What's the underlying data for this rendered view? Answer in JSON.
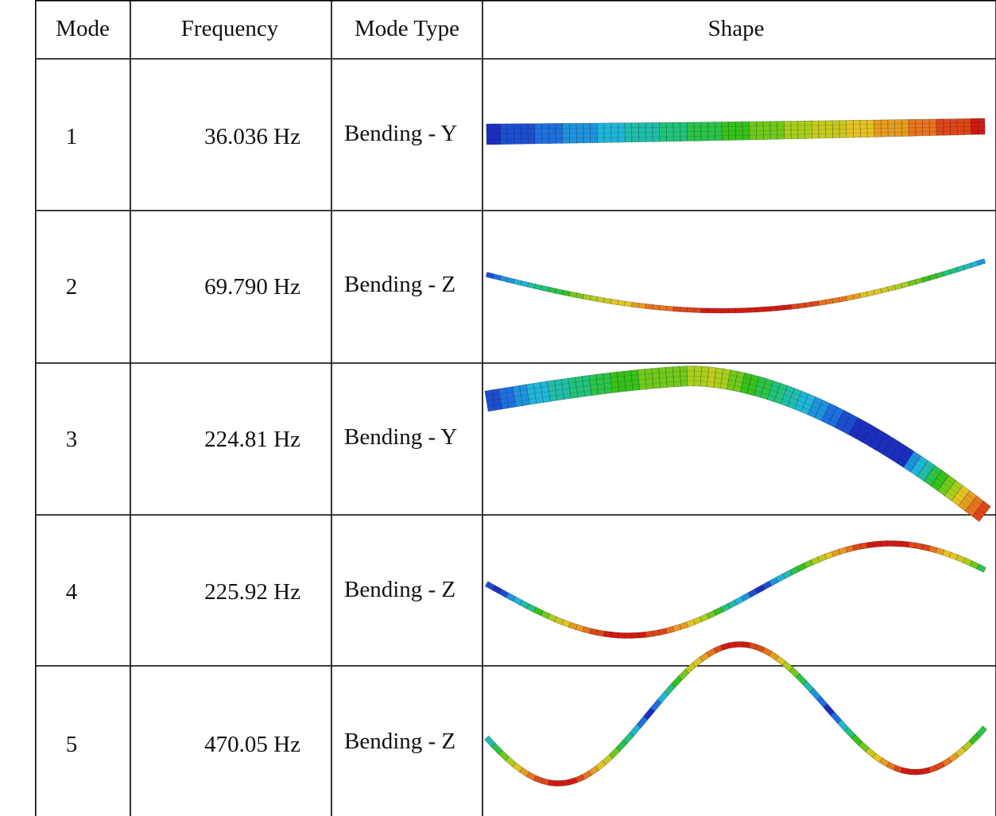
{
  "table": {
    "headers": {
      "mode": "Mode",
      "frequency": "Frequency",
      "mode_type": "Mode Type",
      "shape": "Shape"
    },
    "rows": [
      {
        "mode": "1",
        "frequency": "36.036 Hz",
        "mode_type": "Bending - Y",
        "shape_icon": "mode-shape-1-bending-y-icon"
      },
      {
        "mode": "2",
        "frequency": "69.790 Hz",
        "mode_type": "Bending - Z",
        "shape_icon": "mode-shape-2-bending-z-icon"
      },
      {
        "mode": "3",
        "frequency": "224.81 Hz",
        "mode_type": "Bending - Y",
        "shape_icon": "mode-shape-3-bending-y-icon"
      },
      {
        "mode": "4",
        "frequency": "225.92 Hz",
        "mode_type": "Bending - Z",
        "shape_icon": "mode-shape-4-bending-z-icon"
      },
      {
        "mode": "5",
        "frequency": "470.05 Hz",
        "mode_type": "Bending - Z",
        "shape_icon": "mode-shape-5-bending-z-icon"
      }
    ]
  },
  "colors": {
    "grid": "#000000",
    "contour": [
      "#1a2fbf",
      "#1e6fe0",
      "#1fb6d9",
      "#22c37a",
      "#36c21a",
      "#a9cf1d",
      "#e4c323",
      "#e8741f",
      "#d21a12"
    ]
  }
}
